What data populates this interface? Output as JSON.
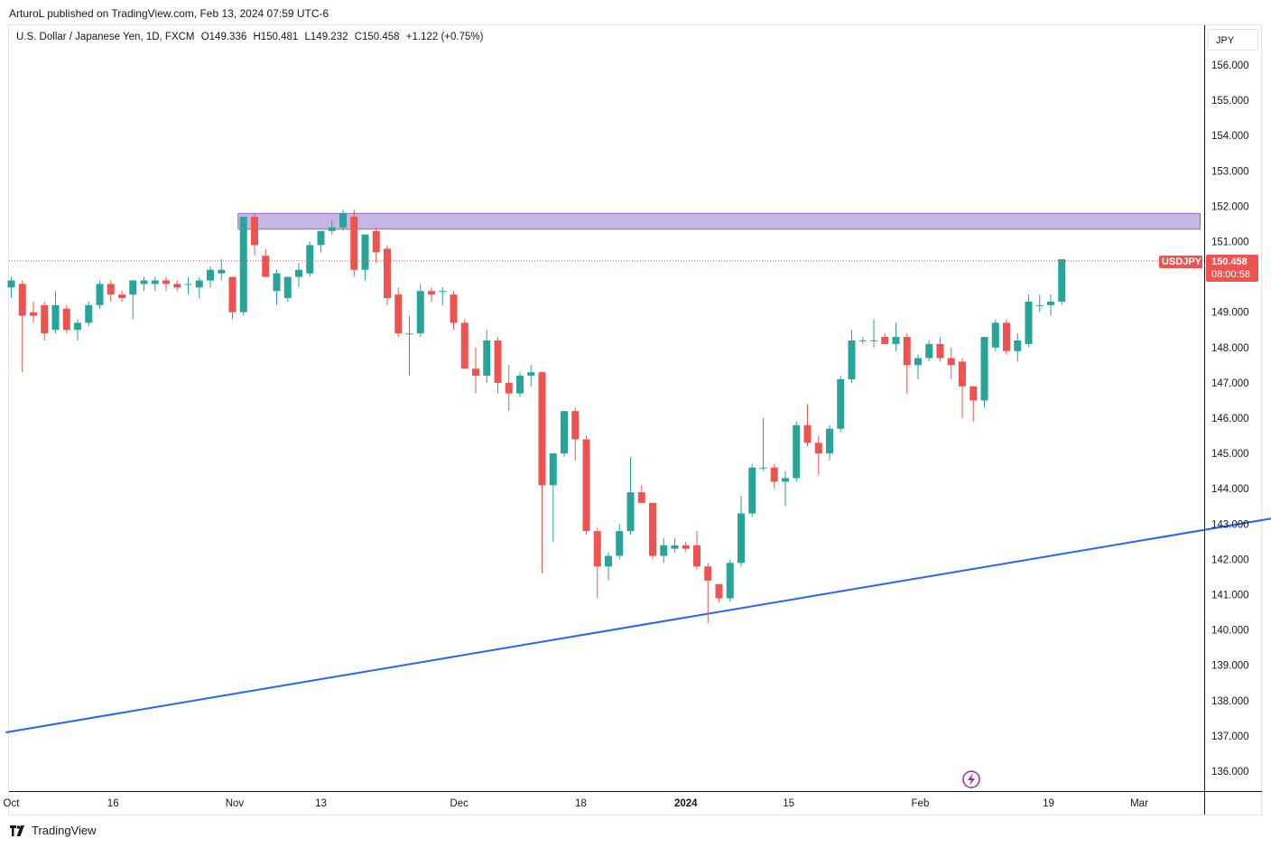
{
  "header": {
    "published_line": "ArturoL published on TradingView.com, Feb 13, 2024 07:59 UTC-6"
  },
  "legend": {
    "title": "U.S. Dollar / Japanese Yen, 1D, FXCM",
    "open": "O149.336",
    "high": "H150.481",
    "low": "L149.232",
    "close": "C150.458",
    "change": "+1.122 (+0.75%)"
  },
  "currency_button": "JPY",
  "price_tag": {
    "symbol": "USDJPY",
    "price": "150.458",
    "countdown": "08:00:58"
  },
  "footer": {
    "brand": "TradingView"
  },
  "colors": {
    "up": "#26a69a",
    "down": "#ef5350",
    "trendline": "#2962ff",
    "zone_fill": "#b39ddb",
    "zone_stroke": "#7e57c2",
    "price_line": "#ef5350",
    "lightning": "#9c27b0"
  },
  "chart_data": {
    "type": "candlestick",
    "title": "U.S. Dollar / Japanese Yen, 1D, FXCM",
    "ylim": [
      135.5,
      156.5
    ],
    "y_ticks": [
      "156.000",
      "155.000",
      "154.000",
      "153.000",
      "152.000",
      "151.000",
      "150.000",
      "149.000",
      "148.000",
      "147.000",
      "146.000",
      "145.000",
      "144.000",
      "143.000",
      "142.000",
      "141.000",
      "140.000",
      "139.000",
      "138.000",
      "137.000",
      "136.000"
    ],
    "x_ticks": [
      {
        "label": "Oct",
        "bar": 0,
        "bold": false
      },
      {
        "label": "16",
        "bar": 9.2,
        "bold": false
      },
      {
        "label": "Nov",
        "bar": 20.2,
        "bold": false
      },
      {
        "label": "13",
        "bar": 28,
        "bold": false
      },
      {
        "label": "Dec",
        "bar": 40.5,
        "bold": false
      },
      {
        "label": "18",
        "bar": 51.5,
        "bold": false
      },
      {
        "label": "2024",
        "bar": 61,
        "bold": true
      },
      {
        "label": "15",
        "bar": 70.3,
        "bold": false
      },
      {
        "label": "Feb",
        "bar": 82.2,
        "bold": false
      },
      {
        "label": "19",
        "bar": 93.8,
        "bold": false
      },
      {
        "label": "Mar",
        "bar": 102,
        "bold": false
      }
    ],
    "candles": [
      {
        "o": 149.7,
        "h": 150.0,
        "l": 149.4,
        "c": 149.9
      },
      {
        "o": 149.8,
        "h": 149.9,
        "l": 147.3,
        "c": 148.9
      },
      {
        "o": 149.0,
        "h": 149.3,
        "l": 148.7,
        "c": 148.9
      },
      {
        "o": 149.2,
        "h": 149.3,
        "l": 148.2,
        "c": 148.4
      },
      {
        "o": 148.5,
        "h": 149.6,
        "l": 148.4,
        "c": 149.2
      },
      {
        "o": 149.1,
        "h": 149.2,
        "l": 148.4,
        "c": 148.5
      },
      {
        "o": 148.5,
        "h": 148.8,
        "l": 148.2,
        "c": 148.7
      },
      {
        "o": 148.7,
        "h": 149.3,
        "l": 148.6,
        "c": 149.2
      },
      {
        "o": 149.2,
        "h": 149.9,
        "l": 149.1,
        "c": 149.8
      },
      {
        "o": 149.8,
        "h": 149.9,
        "l": 149.3,
        "c": 149.5
      },
      {
        "o": 149.5,
        "h": 149.6,
        "l": 149.3,
        "c": 149.4
      },
      {
        "o": 149.5,
        "h": 149.9,
        "l": 148.8,
        "c": 149.9
      },
      {
        "o": 149.8,
        "h": 150.0,
        "l": 149.6,
        "c": 149.9
      },
      {
        "o": 149.8,
        "h": 150.0,
        "l": 149.6,
        "c": 149.9
      },
      {
        "o": 149.9,
        "h": 150.0,
        "l": 149.6,
        "c": 149.8
      },
      {
        "o": 149.8,
        "h": 149.9,
        "l": 149.6,
        "c": 149.7
      },
      {
        "o": 149.8,
        "h": 150.0,
        "l": 149.5,
        "c": 149.8
      },
      {
        "o": 149.7,
        "h": 150.0,
        "l": 149.4,
        "c": 149.9
      },
      {
        "o": 149.9,
        "h": 150.3,
        "l": 149.7,
        "c": 150.2
      },
      {
        "o": 150.1,
        "h": 150.5,
        "l": 149.9,
        "c": 150.2
      },
      {
        "o": 150.0,
        "h": 150.0,
        "l": 148.8,
        "c": 149.0
      },
      {
        "o": 149.0,
        "h": 151.7,
        "l": 148.9,
        "c": 151.7
      },
      {
        "o": 151.7,
        "h": 151.8,
        "l": 150.6,
        "c": 150.9
      },
      {
        "o": 150.6,
        "h": 150.8,
        "l": 150.0,
        "c": 150.0
      },
      {
        "o": 149.6,
        "h": 150.2,
        "l": 149.2,
        "c": 150.1
      },
      {
        "o": 149.4,
        "h": 150.0,
        "l": 149.3,
        "c": 150.0
      },
      {
        "o": 150.0,
        "h": 150.4,
        "l": 149.7,
        "c": 150.2
      },
      {
        "o": 150.1,
        "h": 151.0,
        "l": 150.0,
        "c": 150.9
      },
      {
        "o": 150.9,
        "h": 151.3,
        "l": 150.7,
        "c": 151.3
      },
      {
        "o": 151.3,
        "h": 151.6,
        "l": 151.2,
        "c": 151.4
      },
      {
        "o": 151.4,
        "h": 151.9,
        "l": 151.3,
        "c": 151.8
      },
      {
        "o": 151.7,
        "h": 151.9,
        "l": 150.0,
        "c": 150.2
      },
      {
        "o": 150.2,
        "h": 151.2,
        "l": 149.9,
        "c": 151.2
      },
      {
        "o": 151.3,
        "h": 151.4,
        "l": 150.4,
        "c": 150.7
      },
      {
        "o": 150.8,
        "h": 150.9,
        "l": 149.2,
        "c": 149.4
      },
      {
        "o": 149.5,
        "h": 149.7,
        "l": 148.3,
        "c": 148.4
      },
      {
        "o": 148.4,
        "h": 148.9,
        "l": 147.2,
        "c": 148.4
      },
      {
        "o": 148.4,
        "h": 149.8,
        "l": 148.3,
        "c": 149.6
      },
      {
        "o": 149.6,
        "h": 149.7,
        "l": 149.3,
        "c": 149.5
      },
      {
        "o": 149.6,
        "h": 149.7,
        "l": 149.2,
        "c": 149.6
      },
      {
        "o": 149.5,
        "h": 149.6,
        "l": 148.5,
        "c": 148.7
      },
      {
        "o": 148.7,
        "h": 148.8,
        "l": 147.4,
        "c": 147.4
      },
      {
        "o": 147.4,
        "h": 148.0,
        "l": 146.7,
        "c": 147.2
      },
      {
        "o": 147.2,
        "h": 148.5,
        "l": 147.0,
        "c": 148.2
      },
      {
        "o": 148.2,
        "h": 148.3,
        "l": 146.7,
        "c": 147.0
      },
      {
        "o": 147.0,
        "h": 147.5,
        "l": 146.2,
        "c": 146.7
      },
      {
        "o": 146.7,
        "h": 147.3,
        "l": 146.6,
        "c": 147.2
      },
      {
        "o": 147.2,
        "h": 147.5,
        "l": 146.9,
        "c": 147.3
      },
      {
        "o": 147.3,
        "h": 147.3,
        "l": 141.6,
        "c": 144.1
      },
      {
        "o": 144.1,
        "h": 145.0,
        "l": 142.5,
        "c": 145.0
      },
      {
        "o": 145.0,
        "h": 146.2,
        "l": 144.9,
        "c": 146.2
      },
      {
        "o": 146.2,
        "h": 146.3,
        "l": 144.8,
        "c": 145.4
      },
      {
        "o": 145.4,
        "h": 145.5,
        "l": 142.7,
        "c": 142.8
      },
      {
        "o": 142.8,
        "h": 142.9,
        "l": 140.9,
        "c": 141.8
      },
      {
        "o": 141.8,
        "h": 142.2,
        "l": 141.4,
        "c": 142.1
      },
      {
        "o": 142.1,
        "h": 143.0,
        "l": 142.0,
        "c": 142.8
      },
      {
        "o": 142.8,
        "h": 144.9,
        "l": 142.7,
        "c": 143.9
      },
      {
        "o": 143.9,
        "h": 144.1,
        "l": 143.6,
        "c": 143.6
      },
      {
        "o": 143.6,
        "h": 143.6,
        "l": 142.0,
        "c": 142.1
      },
      {
        "o": 142.1,
        "h": 142.6,
        "l": 141.9,
        "c": 142.4
      },
      {
        "o": 142.3,
        "h": 142.6,
        "l": 142.2,
        "c": 142.4
      },
      {
        "o": 142.4,
        "h": 142.5,
        "l": 142.2,
        "c": 142.3
      },
      {
        "o": 142.4,
        "h": 142.8,
        "l": 141.7,
        "c": 141.8
      },
      {
        "o": 141.8,
        "h": 141.9,
        "l": 140.2,
        "c": 141.4
      },
      {
        "o": 141.3,
        "h": 141.3,
        "l": 140.8,
        "c": 140.9
      },
      {
        "o": 140.9,
        "h": 142.0,
        "l": 140.8,
        "c": 141.9
      },
      {
        "o": 141.9,
        "h": 143.8,
        "l": 141.8,
        "c": 143.3
      },
      {
        "o": 143.3,
        "h": 144.7,
        "l": 143.2,
        "c": 144.6
      },
      {
        "o": 144.6,
        "h": 146.0,
        "l": 144.5,
        "c": 144.6
      },
      {
        "o": 144.6,
        "h": 144.7,
        "l": 144.0,
        "c": 144.2
      },
      {
        "o": 144.2,
        "h": 144.5,
        "l": 143.5,
        "c": 144.3
      },
      {
        "o": 144.3,
        "h": 145.9,
        "l": 144.2,
        "c": 145.8
      },
      {
        "o": 145.8,
        "h": 146.4,
        "l": 145.2,
        "c": 145.3
      },
      {
        "o": 145.3,
        "h": 145.5,
        "l": 144.4,
        "c": 145.0
      },
      {
        "o": 145.0,
        "h": 145.8,
        "l": 144.8,
        "c": 145.7
      },
      {
        "o": 145.7,
        "h": 147.2,
        "l": 145.6,
        "c": 147.1
      },
      {
        "o": 147.1,
        "h": 148.5,
        "l": 147.0,
        "c": 148.2
      },
      {
        "o": 148.2,
        "h": 148.3,
        "l": 148.1,
        "c": 148.2
      },
      {
        "o": 148.2,
        "h": 148.8,
        "l": 148.0,
        "c": 148.2
      },
      {
        "o": 148.3,
        "h": 148.4,
        "l": 148.1,
        "c": 148.1
      },
      {
        "o": 148.1,
        "h": 148.7,
        "l": 147.9,
        "c": 148.3
      },
      {
        "o": 148.3,
        "h": 148.4,
        "l": 146.7,
        "c": 147.5
      },
      {
        "o": 147.5,
        "h": 147.8,
        "l": 147.1,
        "c": 147.7
      },
      {
        "o": 147.7,
        "h": 148.2,
        "l": 147.6,
        "c": 148.1
      },
      {
        "o": 148.1,
        "h": 148.3,
        "l": 147.6,
        "c": 147.7
      },
      {
        "o": 147.7,
        "h": 148.0,
        "l": 147.1,
        "c": 147.5
      },
      {
        "o": 147.6,
        "h": 147.7,
        "l": 146.0,
        "c": 146.9
      },
      {
        "o": 146.9,
        "h": 146.9,
        "l": 145.9,
        "c": 146.5
      },
      {
        "o": 146.5,
        "h": 148.3,
        "l": 146.3,
        "c": 148.3
      },
      {
        "o": 148.0,
        "h": 148.8,
        "l": 147.9,
        "c": 148.7
      },
      {
        "o": 148.7,
        "h": 148.8,
        "l": 147.8,
        "c": 147.9
      },
      {
        "o": 147.9,
        "h": 148.4,
        "l": 147.6,
        "c": 148.2
      },
      {
        "o": 148.1,
        "h": 149.5,
        "l": 148.0,
        "c": 149.3
      },
      {
        "o": 149.2,
        "h": 149.5,
        "l": 149.0,
        "c": 149.2
      },
      {
        "o": 149.2,
        "h": 149.5,
        "l": 148.9,
        "c": 149.3
      },
      {
        "o": 149.3,
        "h": 150.5,
        "l": 149.2,
        "c": 150.5
      }
    ],
    "annotations": {
      "resistance_zone": {
        "start_bar": 21,
        "end_bar": 108,
        "top": 151.8,
        "bottom": 151.35
      },
      "trendline": {
        "from": {
          "bar": -0.5,
          "price": 137.1
        },
        "to": {
          "bar": 119.5,
          "price": 143.45
        }
      },
      "last_price": 150.458
    }
  }
}
